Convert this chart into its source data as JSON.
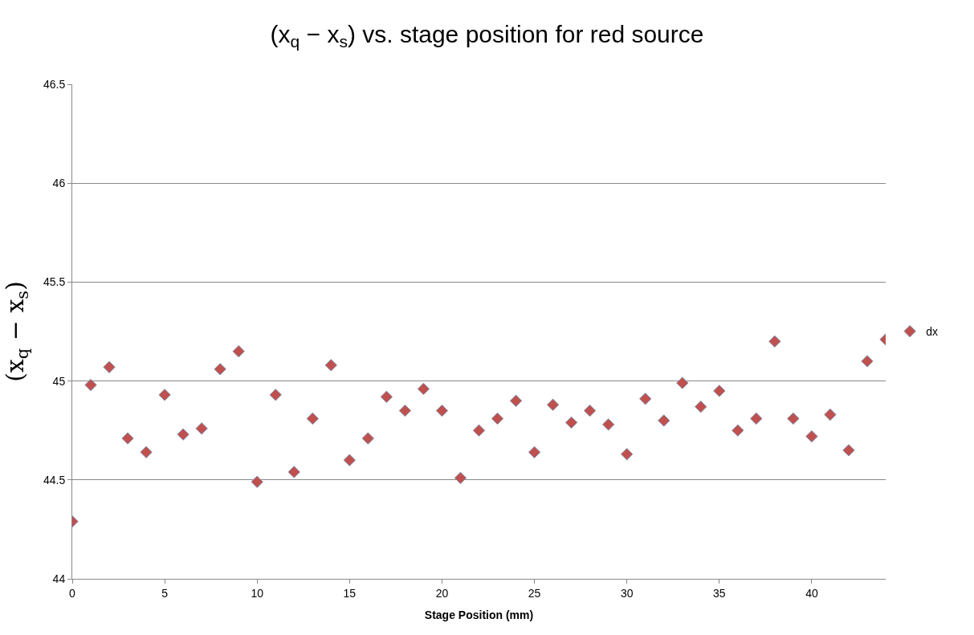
{
  "chart_data": {
    "type": "scatter",
    "title": "(x$_{q}$ − x$_{s}$) vs. stage position for red source",
    "xlabel": "Stage Position (mm)",
    "ylabel": "(x$_{q}$ − x$_{s}$)",
    "x": [
      0,
      1,
      2,
      3,
      4,
      5,
      6,
      7,
      8,
      9,
      10,
      11,
      12,
      13,
      14,
      15,
      16,
      17,
      18,
      19,
      20,
      21,
      22,
      23,
      24,
      25,
      26,
      27,
      28,
      29,
      30,
      31,
      32,
      33,
      34,
      35,
      36,
      37,
      38,
      39,
      40,
      41,
      42,
      43,
      44
    ],
    "series": [
      {
        "name": "dx",
        "color": "#c0504d",
        "values": [
          44.29,
          44.98,
          45.07,
          44.71,
          44.64,
          44.93,
          44.73,
          44.76,
          45.06,
          45.15,
          44.49,
          44.93,
          44.54,
          44.81,
          45.08,
          44.6,
          44.71,
          44.92,
          44.85,
          44.96,
          44.85,
          44.51,
          44.75,
          44.81,
          44.9,
          44.64,
          44.88,
          44.79,
          44.85,
          44.78,
          44.63,
          44.91,
          44.8,
          44.99,
          44.87,
          44.95,
          44.75,
          44.81,
          45.2,
          44.81,
          44.72,
          44.83,
          44.65,
          45.1,
          45.21
        ]
      }
    ],
    "xlim": [
      0,
      44
    ],
    "xticks": [
      0,
      5,
      10,
      15,
      20,
      25,
      30,
      35,
      40
    ],
    "ylim": [
      44,
      46.5
    ],
    "yticks": [
      44,
      44.5,
      45,
      45.5,
      46,
      46.5
    ],
    "grid": "y",
    "legend": "right",
    "marker": "diamond"
  }
}
